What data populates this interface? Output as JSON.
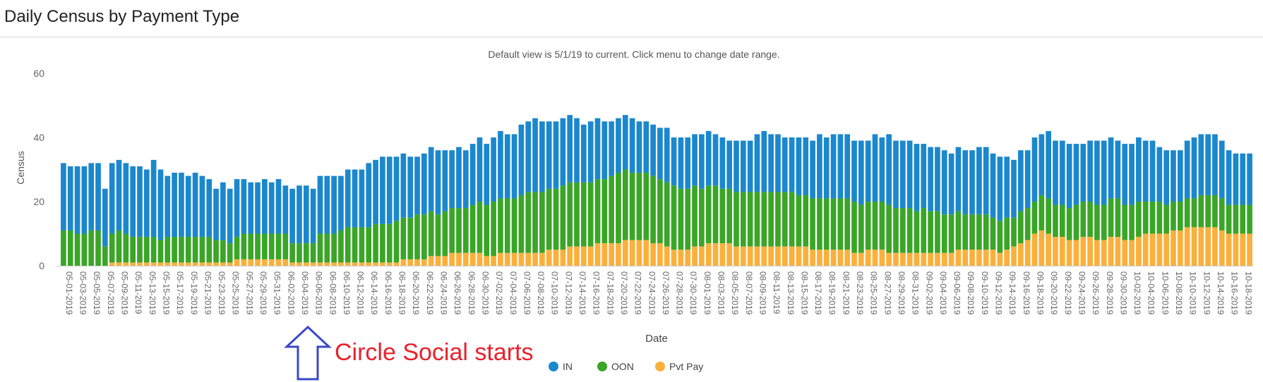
{
  "page": {
    "title": "Daily Census by Payment Type"
  },
  "chart_data": {
    "type": "bar",
    "stacked": true,
    "subtitle": "Default view is 5/1/19 to current. Click menu to change date range.",
    "xlabel": "Date",
    "ylabel": "Census",
    "ylim": [
      0,
      60
    ],
    "yticks": [
      0,
      20,
      40,
      60
    ],
    "grid": false,
    "legend_position": "bottom-center",
    "start_date": "2019-05-01",
    "tick_step_days": 2,
    "series": [
      {
        "name": "IN",
        "color": "#1b87cd",
        "values": [
          21,
          20,
          21,
          21,
          21,
          21,
          18,
          22,
          22,
          22,
          22,
          22,
          21,
          24,
          22,
          19,
          20,
          20,
          19,
          20,
          19,
          18,
          16,
          18,
          17,
          18,
          17,
          16,
          16,
          17,
          16,
          17,
          15,
          17,
          18,
          18,
          17,
          18,
          18,
          18,
          17,
          18,
          18,
          18,
          20,
          20,
          21,
          21,
          20,
          20,
          19,
          18,
          19,
          20,
          20,
          19,
          18,
          19,
          18,
          19,
          20,
          19,
          20,
          21,
          20,
          20,
          22,
          22,
          23,
          22,
          21,
          21,
          21,
          21,
          20,
          18,
          19,
          19,
          18,
          17,
          17,
          17,
          17,
          16,
          16,
          16,
          16,
          17,
          15,
          16,
          16,
          16,
          17,
          17,
          16,
          16,
          15,
          16,
          16,
          16,
          18,
          19,
          18,
          18,
          17,
          17,
          18,
          18,
          18,
          20,
          19,
          20,
          20,
          20,
          19,
          20,
          19,
          21,
          20,
          22,
          21,
          21,
          21,
          21,
          20,
          20,
          20,
          20,
          19,
          20,
          20,
          20,
          21,
          21,
          20,
          20,
          19,
          18,
          19,
          18,
          20,
          19,
          21,
          20,
          20,
          20,
          19,
          18,
          19,
          20,
          20,
          19,
          18,
          19,
          19,
          20,
          19,
          19,
          17,
          17,
          16,
          16,
          18,
          19,
          19,
          19,
          19,
          18,
          17,
          16,
          16,
          16
        ]
      },
      {
        "name": "OON",
        "color": "#3aa527",
        "values": [
          11,
          11,
          10,
          10,
          11,
          11,
          6,
          9,
          10,
          9,
          8,
          8,
          8,
          8,
          7,
          8,
          8,
          8,
          8,
          8,
          8,
          8,
          7,
          7,
          6,
          7,
          8,
          8,
          8,
          8,
          8,
          8,
          8,
          6,
          6,
          6,
          6,
          9,
          9,
          9,
          10,
          11,
          11,
          11,
          11,
          12,
          12,
          12,
          13,
          13,
          13,
          14,
          14,
          14,
          13,
          14,
          14,
          14,
          14,
          15,
          16,
          16,
          17,
          17,
          17,
          17,
          18,
          19,
          19,
          19,
          19,
          19,
          20,
          20,
          20,
          20,
          20,
          20,
          20,
          21,
          22,
          22,
          21,
          21,
          21,
          21,
          20,
          20,
          20,
          19,
          19,
          19,
          18,
          18,
          18,
          17,
          17,
          17,
          17,
          17,
          17,
          17,
          17,
          17,
          17,
          17,
          16,
          16,
          16,
          16,
          16,
          16,
          16,
          16,
          16,
          15,
          15,
          15,
          15,
          15,
          14,
          14,
          14,
          13,
          14,
          13,
          13,
          12,
          12,
          12,
          11,
          11,
          11,
          11,
          10,
          10,
          10,
          9,
          10,
          10,
          10,
          11,
          11,
          10,
          10,
          10,
          11,
          11,
          11,
          11,
          11,
          12,
          12,
          11,
          11,
          11,
          10,
          10,
          10,
          9,
          9,
          9,
          9,
          9,
          10,
          10,
          10,
          10,
          9,
          9,
          9,
          9
        ]
      },
      {
        "name": "Pvt Pay",
        "color": "#fbb03b",
        "values": [
          0,
          0,
          0,
          0,
          0,
          0,
          0,
          1,
          1,
          1,
          1,
          1,
          1,
          1,
          1,
          1,
          1,
          1,
          1,
          1,
          1,
          1,
          1,
          1,
          1,
          2,
          2,
          2,
          2,
          2,
          2,
          2,
          2,
          1,
          1,
          1,
          1,
          1,
          1,
          1,
          1,
          1,
          1,
          1,
          1,
          1,
          1,
          1,
          1,
          2,
          2,
          2,
          2,
          3,
          3,
          3,
          4,
          4,
          4,
          4,
          4,
          3,
          3,
          4,
          4,
          4,
          4,
          4,
          4,
          4,
          5,
          5,
          5,
          6,
          6,
          6,
          6,
          7,
          7,
          7,
          7,
          8,
          8,
          8,
          8,
          7,
          7,
          6,
          5,
          5,
          5,
          6,
          6,
          7,
          7,
          7,
          7,
          6,
          6,
          6,
          6,
          6,
          6,
          6,
          6,
          6,
          6,
          6,
          5,
          5,
          5,
          5,
          5,
          5,
          4,
          4,
          5,
          5,
          5,
          4,
          4,
          4,
          4,
          4,
          4,
          4,
          4,
          4,
          4,
          5,
          5,
          5,
          5,
          5,
          5,
          4,
          5,
          6,
          7,
          8,
          10,
          11,
          10,
          9,
          9,
          8,
          8,
          9,
          9,
          8,
          8,
          9,
          9,
          8,
          8,
          9,
          10,
          10,
          10,
          10,
          11,
          11,
          12,
          12,
          12,
          12,
          12,
          11,
          10,
          10,
          10,
          10
        ]
      }
    ]
  },
  "annotation": {
    "text": "Circle Social starts",
    "color": "#e8212b",
    "arrow_color": "#3a48c9"
  }
}
